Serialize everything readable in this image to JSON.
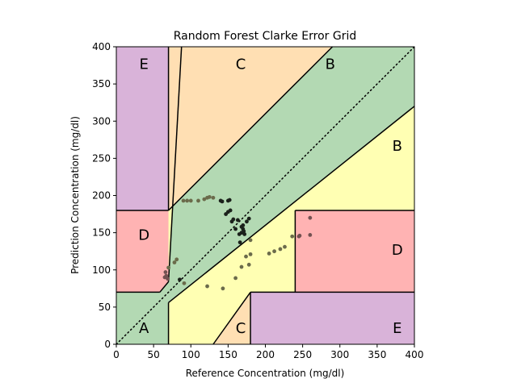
{
  "chart_data": {
    "type": "scatter",
    "title": "Random Forest Clarke Error Grid",
    "xlabel": "Reference Concentration (mg/dl)",
    "ylabel": "Prediction Concentration (mg/dl)",
    "xlim": [
      0,
      400
    ],
    "ylim": [
      0,
      400
    ],
    "x_ticks": [
      "0",
      "50",
      "100",
      "150",
      "200",
      "250",
      "300",
      "350",
      "400"
    ],
    "y_ticks": [
      "0",
      "50",
      "100",
      "150",
      "200",
      "250",
      "300",
      "350",
      "400"
    ],
    "grid": false,
    "legend": "none",
    "identity_line": "dotted",
    "zone_colors": {
      "A": "#b3d9b3",
      "B": "#ffffb3",
      "C": "#ffdfb3",
      "D": "#ffb3b3",
      "E": "#d9b3d9"
    },
    "zone_labels": [
      {
        "text": "A",
        "x": 37,
        "y": 23
      },
      {
        "text": "B",
        "x": 287,
        "y": 378
      },
      {
        "text": "B",
        "x": 377,
        "y": 268
      },
      {
        "text": "C",
        "x": 167,
        "y": 378
      },
      {
        "text": "C",
        "x": 167,
        "y": 23
      },
      {
        "text": "D",
        "x": 37,
        "y": 148
      },
      {
        "text": "D",
        "x": 377,
        "y": 128
      },
      {
        "text": "E",
        "x": 37,
        "y": 378
      },
      {
        "text": "E",
        "x": 377,
        "y": 23
      }
    ],
    "points": [
      {
        "x": 65,
        "y": 90,
        "zone": "D"
      },
      {
        "x": 67,
        "y": 92,
        "zone": "D"
      },
      {
        "x": 66,
        "y": 97,
        "zone": "D"
      },
      {
        "x": 69,
        "y": 88,
        "zone": "D"
      },
      {
        "x": 70,
        "y": 103,
        "zone": "B"
      },
      {
        "x": 78,
        "y": 110,
        "zone": "B"
      },
      {
        "x": 81,
        "y": 114,
        "zone": "B"
      },
      {
        "x": 85,
        "y": 87,
        "zone": "A"
      },
      {
        "x": 91,
        "y": 82,
        "zone": "B"
      },
      {
        "x": 90,
        "y": 193,
        "zone": "B"
      },
      {
        "x": 95,
        "y": 193,
        "zone": "B"
      },
      {
        "x": 100,
        "y": 193,
        "zone": "B"
      },
      {
        "x": 110,
        "y": 193,
        "zone": "B"
      },
      {
        "x": 118,
        "y": 195,
        "zone": "B"
      },
      {
        "x": 122,
        "y": 197,
        "zone": "B"
      },
      {
        "x": 125,
        "y": 198,
        "zone": "B"
      },
      {
        "x": 130,
        "y": 197,
        "zone": "B"
      },
      {
        "x": 140,
        "y": 193,
        "zone": "A"
      },
      {
        "x": 142,
        "y": 192,
        "zone": "A"
      },
      {
        "x": 150,
        "y": 193,
        "zone": "A"
      },
      {
        "x": 152,
        "y": 194,
        "zone": "A"
      },
      {
        "x": 147,
        "y": 175,
        "zone": "A"
      },
      {
        "x": 150,
        "y": 178,
        "zone": "A"
      },
      {
        "x": 153,
        "y": 180,
        "zone": "A"
      },
      {
        "x": 155,
        "y": 165,
        "zone": "A"
      },
      {
        "x": 157,
        "y": 168,
        "zone": "A"
      },
      {
        "x": 160,
        "y": 155,
        "zone": "A"
      },
      {
        "x": 163,
        "y": 167,
        "zone": "A"
      },
      {
        "x": 165,
        "y": 148,
        "zone": "A"
      },
      {
        "x": 166,
        "y": 137,
        "zone": "A"
      },
      {
        "x": 168,
        "y": 158,
        "zone": "A"
      },
      {
        "x": 168,
        "y": 150,
        "zone": "A"
      },
      {
        "x": 170,
        "y": 160,
        "zone": "A"
      },
      {
        "x": 170,
        "y": 155,
        "zone": "A"
      },
      {
        "x": 171,
        "y": 152,
        "zone": "A"
      },
      {
        "x": 172,
        "y": 148,
        "zone": "A"
      },
      {
        "x": 175,
        "y": 165,
        "zone": "A"
      },
      {
        "x": 178,
        "y": 169,
        "zone": "A"
      },
      {
        "x": 180,
        "y": 140,
        "zone": "B"
      },
      {
        "x": 168,
        "y": 104,
        "zone": "B"
      },
      {
        "x": 174,
        "y": 118,
        "zone": "B"
      },
      {
        "x": 180,
        "y": 121,
        "zone": "B"
      },
      {
        "x": 178,
        "y": 107,
        "zone": "B"
      },
      {
        "x": 160,
        "y": 89,
        "zone": "B"
      },
      {
        "x": 122,
        "y": 78,
        "zone": "B"
      },
      {
        "x": 143,
        "y": 75,
        "zone": "B"
      },
      {
        "x": 205,
        "y": 122,
        "zone": "B"
      },
      {
        "x": 212,
        "y": 125,
        "zone": "B"
      },
      {
        "x": 220,
        "y": 128,
        "zone": "B"
      },
      {
        "x": 226,
        "y": 131,
        "zone": "B"
      },
      {
        "x": 236,
        "y": 145,
        "zone": "B"
      },
      {
        "x": 245,
        "y": 145,
        "zone": "D"
      },
      {
        "x": 246,
        "y": 146,
        "zone": "D"
      },
      {
        "x": 260,
        "y": 147,
        "zone": "D"
      },
      {
        "x": 260,
        "y": 170,
        "zone": "D"
      }
    ]
  }
}
